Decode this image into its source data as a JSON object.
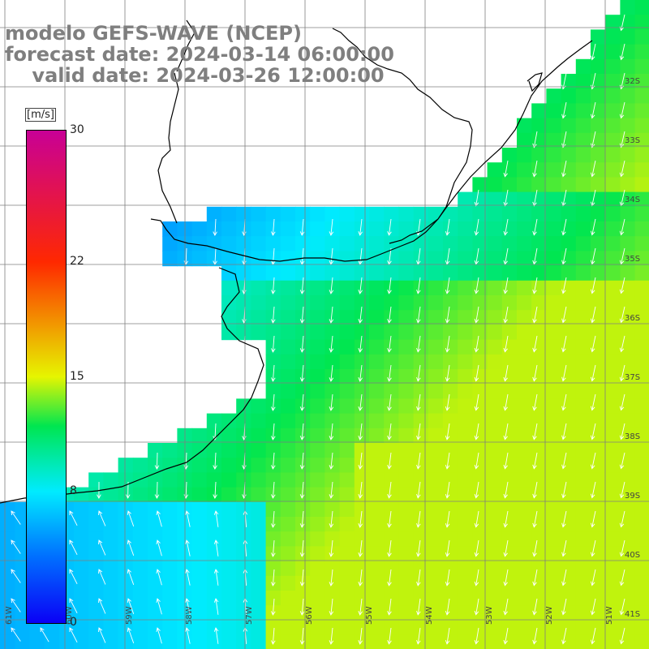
{
  "title": {
    "line1": "modelo GEFS-WAVE (NCEP)",
    "line2": "forecast date: 2024-03-14 06:00:00",
    "line3": "    valid date: 2024-03-26 12:00:00"
  },
  "legend": {
    "unit": "[m/s]",
    "ticks": [
      {
        "label": "30",
        "value": 30
      },
      {
        "label": "22",
        "value": 22
      },
      {
        "label": "15",
        "value": 15
      },
      {
        "label": "8",
        "value": 8
      },
      {
        "label": "0",
        "value": 0
      }
    ],
    "min": 0,
    "max": 30
  },
  "colors": {
    "land": "#ffffff",
    "grid": "#7f7f7f",
    "coast": "#000000",
    "arrow": "#ffffff"
  },
  "grid_labels": {
    "lat": [
      "32S",
      "33S",
      "34S",
      "35S",
      "36S",
      "37S",
      "38S",
      "39S",
      "40S",
      "41S"
    ],
    "lon": [
      "61W",
      "60W",
      "59W",
      "58W",
      "57W",
      "56W",
      "55W",
      "54W",
      "53W",
      "52W",
      "51W"
    ]
  }
}
